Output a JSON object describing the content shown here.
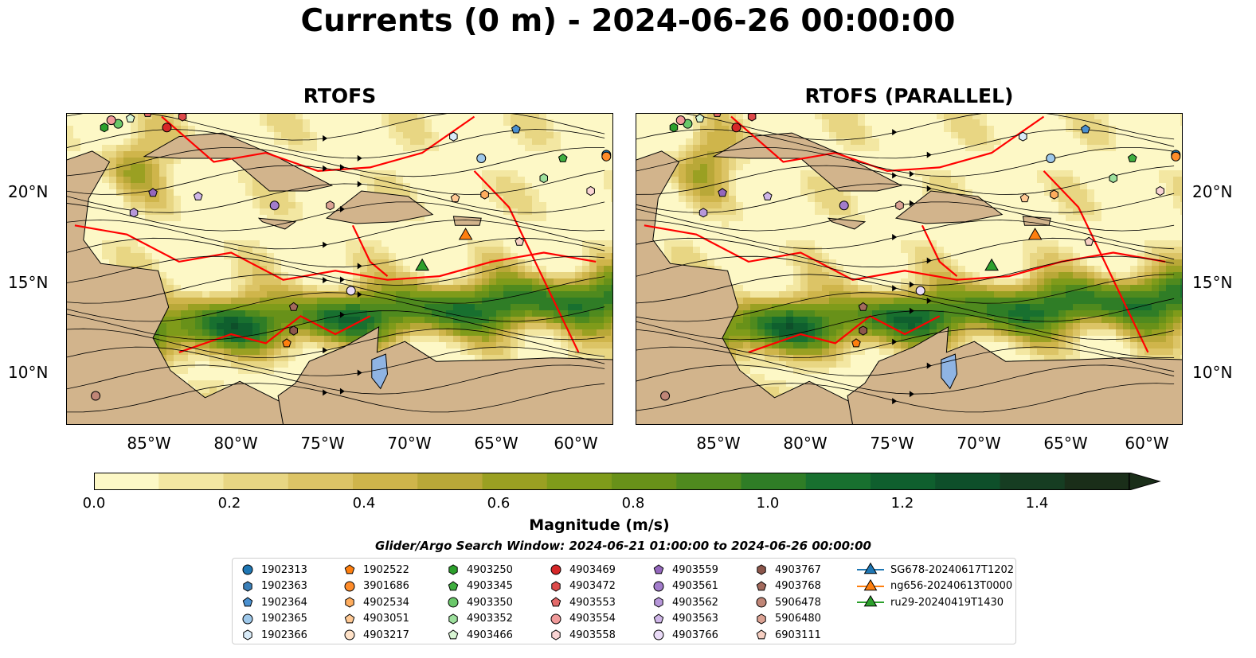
{
  "title": "Currents (0 m) - 2024-06-26 00:00:00",
  "panels": [
    {
      "title": "RTOFS"
    },
    {
      "title": "RTOFS (PARALLEL)"
    }
  ],
  "map": {
    "lon_range": [
      -89.5,
      -58
    ],
    "lat_range": [
      7,
      24.2
    ],
    "lat_ticks": [
      "20°N",
      "15°N",
      "10°N"
    ],
    "lon_ticks": [
      "85°W",
      "80°W",
      "75°W",
      "70°W",
      "65°W",
      "60°W"
    ],
    "land_color": "#d2b48c",
    "eez_color": "#ff0000",
    "lake_color": "#8fb4e3"
  },
  "colorbar": {
    "label": "Magnitude (m/s)",
    "min": 0.0,
    "max": 1.5,
    "extend": "max",
    "ticks": [
      "0.0",
      "0.2",
      "0.4",
      "0.6",
      "0.8",
      "1.0",
      "1.2",
      "1.4"
    ],
    "colors": [
      "#fdf8c6",
      "#f3e7a2",
      "#e8d683",
      "#dcc466",
      "#cfb54b",
      "#b9a838",
      "#9aa022",
      "#7f9b1a",
      "#689119",
      "#4f8a1e",
      "#2f7d26",
      "#18702f",
      "#0f5f2e",
      "#0e4f2a",
      "#163d22",
      "#1a2e19"
    ]
  },
  "search_window": "Glider/Argo Search Window: 2024-06-21 01:00:00 to 2024-06-26 00:00:00",
  "legend": [
    {
      "label": "1902313",
      "marker": "circle",
      "color": "#1f77b4"
    },
    {
      "label": "1902363",
      "marker": "hexagon",
      "color": "#3a7fb8"
    },
    {
      "label": "1902364",
      "marker": "pentagon",
      "color": "#4a90d0"
    },
    {
      "label": "1902365",
      "marker": "circle",
      "color": "#9ec8ea"
    },
    {
      "label": "1902366",
      "marker": "hexagon",
      "color": "#d9ebf8"
    },
    {
      "label": "1902522",
      "marker": "pentagon",
      "color": "#ff7f0e"
    },
    {
      "label": "3901686",
      "marker": "circle",
      "color": "#ff8c2a"
    },
    {
      "label": "4902534",
      "marker": "hexagon",
      "color": "#ffad5e"
    },
    {
      "label": "4903051",
      "marker": "pentagon",
      "color": "#ffc994"
    },
    {
      "label": "4903217",
      "marker": "circle",
      "color": "#ffe2c8"
    },
    {
      "label": "4903250",
      "marker": "hexagon",
      "color": "#2ca02c"
    },
    {
      "label": "4903345",
      "marker": "pentagon",
      "color": "#3fae3f"
    },
    {
      "label": "4903350",
      "marker": "circle",
      "color": "#6ac86a"
    },
    {
      "label": "4903352",
      "marker": "hexagon",
      "color": "#9de09d"
    },
    {
      "label": "4903466",
      "marker": "pentagon",
      "color": "#d8f5d3"
    },
    {
      "label": "4903469",
      "marker": "circle",
      "color": "#d62728"
    },
    {
      "label": "4903472",
      "marker": "hexagon",
      "color": "#dd4a4a"
    },
    {
      "label": "4903553",
      "marker": "pentagon",
      "color": "#e36a6a"
    },
    {
      "label": "4903554",
      "marker": "circle",
      "color": "#f09a9a"
    },
    {
      "label": "4903558",
      "marker": "hexagon",
      "color": "#fad4d4"
    },
    {
      "label": "4903559",
      "marker": "pentagon",
      "color": "#9467bd"
    },
    {
      "label": "4903561",
      "marker": "circle",
      "color": "#a27ccb"
    },
    {
      "label": "4903562",
      "marker": "hexagon",
      "color": "#b797da"
    },
    {
      "label": "4903563",
      "marker": "pentagon",
      "color": "#cfb6e8"
    },
    {
      "label": "4903766",
      "marker": "circle",
      "color": "#eadbf7"
    },
    {
      "label": "4903767",
      "marker": "hexagon",
      "color": "#8c564b"
    },
    {
      "label": "4903768",
      "marker": "pentagon",
      "color": "#a36a5d"
    },
    {
      "label": "5906478",
      "marker": "circle",
      "color": "#c08677"
    },
    {
      "label": "5906480",
      "marker": "hexagon",
      "color": "#dca394"
    },
    {
      "label": "6903111",
      "marker": "pentagon",
      "color": "#f6cfc2"
    },
    {
      "label": "SG678-20240617T1202",
      "marker": "triangle-line",
      "color": "#1f77b4"
    },
    {
      "label": "ng656-20240613T0000",
      "marker": "triangle-line",
      "color": "#ff7f0e"
    },
    {
      "label": "ru29-20240419T1430",
      "marker": "triangle-line",
      "color": "#2ca02c"
    }
  ],
  "floats": [
    {
      "id": "1902313",
      "lon": -58.4,
      "lat": 21.9
    },
    {
      "id": "1902364",
      "lon": -63.6,
      "lat": 23.3
    },
    {
      "id": "1902365",
      "lon": -65.6,
      "lat": 21.7
    },
    {
      "id": "1902366",
      "lon": -67.2,
      "lat": 22.9
    },
    {
      "id": "3901686",
      "lon": -58.4,
      "lat": 21.8
    },
    {
      "id": "4903051",
      "lon": -67.1,
      "lat": 19.5
    },
    {
      "id": "4903345",
      "lon": -60.9,
      "lat": 21.7
    },
    {
      "id": "4903352",
      "lon": -62.0,
      "lat": 20.6
    },
    {
      "id": "4903250",
      "lon": -87.3,
      "lat": 23.4
    },
    {
      "id": "4903350",
      "lon": -86.5,
      "lat": 23.6
    },
    {
      "id": "4903466",
      "lon": -85.8,
      "lat": 23.9
    },
    {
      "id": "4903469",
      "lon": -83.7,
      "lat": 23.4
    },
    {
      "id": "4903554",
      "lon": -86.9,
      "lat": 23.8
    },
    {
      "id": "4903553",
      "lon": -84.8,
      "lat": 24.2
    },
    {
      "id": "4903472",
      "lon": -82.8,
      "lat": 24.0
    },
    {
      "id": "4903558",
      "lon": -59.3,
      "lat": 19.9
    },
    {
      "id": "4902534",
      "lon": -65.4,
      "lat": 19.7
    },
    {
      "id": "4903559",
      "lon": -84.5,
      "lat": 19.8
    },
    {
      "id": "4903563",
      "lon": -81.9,
      "lat": 19.6
    },
    {
      "id": "4903561",
      "lon": -77.5,
      "lat": 19.1
    },
    {
      "id": "4903562",
      "lon": -85.6,
      "lat": 18.7
    },
    {
      "id": "4903766",
      "lon": -73.1,
      "lat": 14.4
    },
    {
      "id": "4903767",
      "lon": -76.4,
      "lat": 12.2
    },
    {
      "id": "4903768",
      "lon": -76.4,
      "lat": 13.5
    },
    {
      "id": "5906480",
      "lon": -74.3,
      "lat": 19.1
    },
    {
      "id": "1902522",
      "lon": -76.8,
      "lat": 11.5
    },
    {
      "id": "5906478",
      "lon": -87.8,
      "lat": 8.6
    },
    {
      "id": "6903111",
      "lon": -63.4,
      "lat": 17.1
    }
  ],
  "gliders": [
    {
      "id": "ng656-20240613T0000",
      "lon": -66.5,
      "lat": 17.5
    },
    {
      "id": "ru29-20240419T1430",
      "lon": -69.0,
      "lat": 15.8
    }
  ]
}
